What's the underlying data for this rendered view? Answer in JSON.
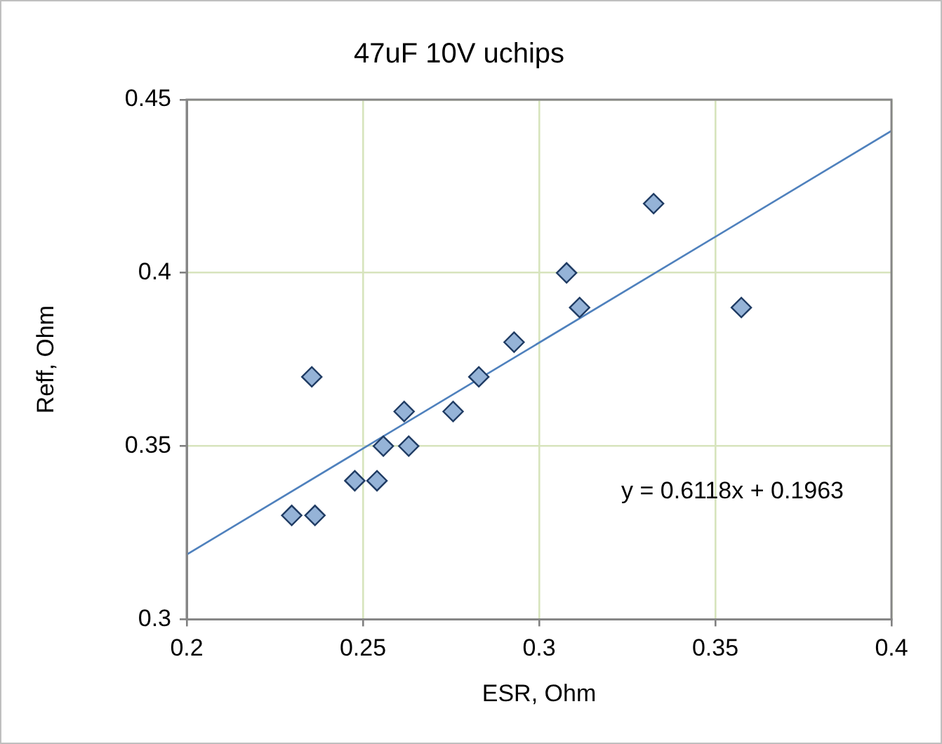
{
  "chart_data": {
    "type": "scatter",
    "title": "47uF 10V uchips",
    "xlabel": "ESR, Ohm",
    "ylabel": "Reff, Ohm",
    "xlim": [
      0.2,
      0.4
    ],
    "xticks": [
      0.2,
      0.25,
      0.3,
      0.35,
      0.4
    ],
    "ylim": [
      0.3,
      0.45
    ],
    "yticks": [
      0.3,
      0.35,
      0.4,
      0.45
    ],
    "grid": true,
    "legend": false,
    "marker": "diamond",
    "series": [
      {
        "color": "#95b3d7",
        "x": [
          0.2355,
          0.2298,
          0.2364,
          0.2477,
          0.254,
          0.2558,
          0.2617,
          0.263,
          0.2756,
          0.2829,
          0.2929,
          0.3078,
          0.3115,
          0.3325,
          0.3574
        ],
        "values": [
          0.37,
          0.33,
          0.33,
          0.34,
          0.34,
          0.35,
          0.36,
          0.35,
          0.36,
          0.37,
          0.38,
          0.4,
          0.39,
          0.42,
          0.39
        ]
      },
      {
        "type": "line",
        "color": "#4f81bd",
        "marker": "none",
        "x": [
          0.2,
          0.4
        ],
        "values": [
          0.3187,
          0.441
        ]
      }
    ],
    "annotations": [
      "y = 0.6118x + 0.1963"
    ]
  }
}
